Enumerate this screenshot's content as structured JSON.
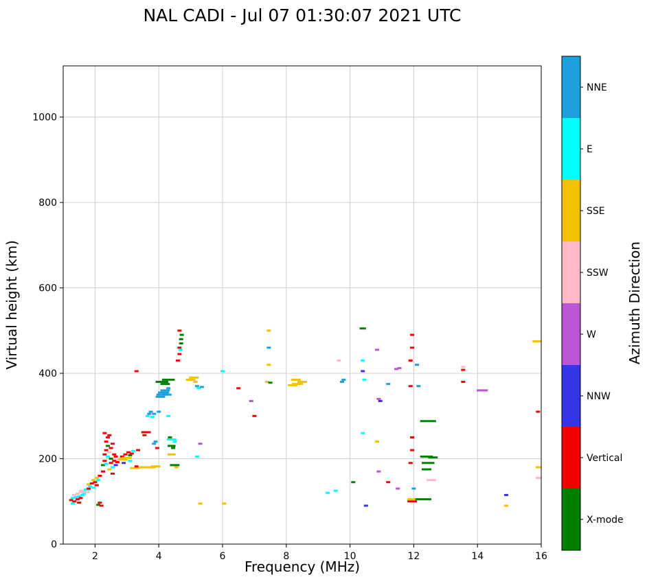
{
  "chart_data": {
    "type": "scatter",
    "title": "NAL CADI - Jul 07 01:30:07 2021 UTC",
    "xlabel": "Frequency (MHz)",
    "ylabel": "Virtual height (km)",
    "xlim": [
      1,
      16
    ],
    "ylim": [
      0,
      1120
    ],
    "xticks": [
      2,
      4,
      6,
      8,
      10,
      12,
      14,
      16
    ],
    "yticks": [
      0,
      200,
      400,
      600,
      800,
      1000
    ],
    "grid": true,
    "grid_color": "#cfcfcf",
    "marker": "horizontal-dash",
    "colorbar": {
      "label": "Azimuth Direction",
      "categories": [
        {
          "name": "NNE",
          "color": "#1e9fdf"
        },
        {
          "name": "E",
          "color": "#00ffff"
        },
        {
          "name": "SSE",
          "color": "#f2c200"
        },
        {
          "name": "SSW",
          "color": "#ffb9c6"
        },
        {
          "name": "W",
          "color": "#ba55d3"
        },
        {
          "name": "NNW",
          "color": "#3434e8"
        },
        {
          "name": "Vertical",
          "color": "#f40000"
        },
        {
          "name": "X-mode",
          "color": "#008000"
        }
      ]
    },
    "points_format": "[frequency_MHz, virtual_height_km, azimuth, optional_width_MHz]",
    "points": [
      [
        1.25,
        103,
        "Vertical"
      ],
      [
        1.3,
        95,
        "E"
      ],
      [
        1.3,
        108,
        "E"
      ],
      [
        1.35,
        100,
        "Vertical"
      ],
      [
        1.35,
        115,
        "SSW"
      ],
      [
        1.4,
        110,
        "E"
      ],
      [
        1.45,
        105,
        "Vertical"
      ],
      [
        1.45,
        118,
        "SSW"
      ],
      [
        1.5,
        97,
        "Vertical"
      ],
      [
        1.5,
        112,
        "E"
      ],
      [
        1.55,
        108,
        "Vertical"
      ],
      [
        1.55,
        122,
        "SSW"
      ],
      [
        1.6,
        115,
        "E"
      ],
      [
        1.6,
        125,
        "SSW",
        0.2
      ],
      [
        1.65,
        118,
        "E"
      ],
      [
        1.7,
        122,
        "SSW",
        0.25
      ],
      [
        1.75,
        128,
        "E",
        0.2
      ],
      [
        1.8,
        130,
        "Vertical"
      ],
      [
        1.8,
        140,
        "SSE"
      ],
      [
        1.85,
        135,
        "E"
      ],
      [
        1.9,
        142,
        "Vertical"
      ],
      [
        1.95,
        132,
        "E"
      ],
      [
        1.95,
        150,
        "SSE"
      ],
      [
        2.0,
        145,
        "Vertical"
      ],
      [
        2.05,
        138,
        "Vertical"
      ],
      [
        2.05,
        155,
        "SSE"
      ],
      [
        2.1,
        92,
        "X-mode"
      ],
      [
        2.1,
        150,
        "E"
      ],
      [
        2.15,
        97,
        "Vertical"
      ],
      [
        2.15,
        160,
        "Vertical"
      ],
      [
        2.2,
        90,
        "Vertical"
      ],
      [
        2.25,
        170,
        "Vertical"
      ],
      [
        2.25,
        185,
        "X-mode"
      ],
      [
        2.3,
        195,
        "Vertical"
      ],
      [
        2.3,
        210,
        "Vertical"
      ],
      [
        2.3,
        260,
        "Vertical"
      ],
      [
        2.35,
        188,
        "E"
      ],
      [
        2.35,
        220,
        "Vertical"
      ],
      [
        2.35,
        240,
        "Vertical"
      ],
      [
        2.4,
        205,
        "E"
      ],
      [
        2.4,
        230,
        "X-mode"
      ],
      [
        2.4,
        250,
        "Vertical"
      ],
      [
        2.45,
        175,
        "SSE"
      ],
      [
        2.45,
        215,
        "SSW"
      ],
      [
        2.45,
        255,
        "Vertical"
      ],
      [
        2.5,
        190,
        "Vertical"
      ],
      [
        2.5,
        200,
        "X-mode"
      ],
      [
        2.5,
        225,
        "Vertical"
      ],
      [
        2.55,
        165,
        "Vertical"
      ],
      [
        2.55,
        180,
        "E"
      ],
      [
        2.55,
        235,
        "Vertical"
      ],
      [
        2.6,
        195,
        "Vertical"
      ],
      [
        2.6,
        210,
        "Vertical"
      ],
      [
        2.65,
        185,
        "NNW"
      ],
      [
        2.65,
        205,
        "Vertical"
      ],
      [
        2.7,
        192,
        "Vertical"
      ],
      [
        2.75,
        198,
        "SSW"
      ],
      [
        2.8,
        200,
        "SSE"
      ],
      [
        2.85,
        205,
        "Vertical"
      ],
      [
        2.9,
        190,
        "NNW"
      ],
      [
        2.9,
        198,
        "SSE",
        0.25
      ],
      [
        2.95,
        210,
        "Vertical"
      ],
      [
        3.0,
        202,
        "SSE",
        0.3
      ],
      [
        3.05,
        215,
        "Vertical"
      ],
      [
        3.1,
        195,
        "E"
      ],
      [
        3.1,
        208,
        "X-mode"
      ],
      [
        3.15,
        212,
        "Vertical"
      ],
      [
        3.2,
        218,
        "E"
      ],
      [
        3.25,
        178,
        "SSE",
        0.3
      ],
      [
        3.3,
        182,
        "Vertical"
      ],
      [
        3.3,
        405,
        "Vertical"
      ],
      [
        3.35,
        220,
        "Vertical"
      ],
      [
        3.55,
        255,
        "Vertical"
      ],
      [
        3.6,
        262,
        "Vertical",
        0.3
      ],
      [
        3.65,
        180,
        "SSE",
        0.5
      ],
      [
        3.65,
        300,
        "E"
      ],
      [
        3.7,
        305,
        "NNE"
      ],
      [
        3.75,
        310,
        "NNE"
      ],
      [
        3.8,
        298,
        "E"
      ],
      [
        3.85,
        235,
        "NNE"
      ],
      [
        3.85,
        305,
        "NNE"
      ],
      [
        3.9,
        182,
        "SSE",
        0.3
      ],
      [
        3.9,
        240,
        "NNE"
      ],
      [
        3.95,
        225,
        "Vertical"
      ],
      [
        4.0,
        310,
        "NNE"
      ],
      [
        4.05,
        345,
        "NNE",
        0.3
      ],
      [
        4.1,
        350,
        "NNE",
        0.35
      ],
      [
        4.1,
        380,
        "X-mode",
        0.4
      ],
      [
        4.15,
        355,
        "NNE",
        0.35
      ],
      [
        4.2,
        360,
        "NNE",
        0.3
      ],
      [
        4.2,
        375,
        "X-mode",
        0.3
      ],
      [
        4.25,
        350,
        "NNE",
        0.3
      ],
      [
        4.3,
        300,
        "E"
      ],
      [
        4.3,
        365,
        "NNE"
      ],
      [
        4.3,
        385,
        "X-mode",
        0.4
      ],
      [
        4.35,
        250,
        "X-mode"
      ],
      [
        4.4,
        210,
        "SSE",
        0.25
      ],
      [
        4.4,
        230,
        "X-mode",
        0.25
      ],
      [
        4.4,
        245,
        "E",
        0.3
      ],
      [
        4.45,
        225,
        "X-mode"
      ],
      [
        4.5,
        185,
        "X-mode",
        0.3
      ],
      [
        4.5,
        240,
        "E"
      ],
      [
        4.55,
        180,
        "SSE"
      ],
      [
        4.6,
        430,
        "Vertical"
      ],
      [
        4.65,
        445,
        "Vertical"
      ],
      [
        4.65,
        460,
        "Vertical"
      ],
      [
        4.65,
        500,
        "Vertical"
      ],
      [
        4.68,
        455,
        "E"
      ],
      [
        4.7,
        470,
        "X-mode"
      ],
      [
        4.7,
        480,
        "X-mode"
      ],
      [
        4.72,
        490,
        "X-mode"
      ],
      [
        5.0,
        385,
        "SSE",
        0.3
      ],
      [
        5.1,
        390,
        "SSE",
        0.3
      ],
      [
        5.15,
        380,
        "SSE"
      ],
      [
        5.2,
        205,
        "E"
      ],
      [
        5.2,
        370,
        "NNE"
      ],
      [
        5.25,
        365,
        "E"
      ],
      [
        5.3,
        95,
        "SSE"
      ],
      [
        5.3,
        235,
        "W"
      ],
      [
        5.35,
        368,
        "NNE"
      ],
      [
        6.0,
        405,
        "E"
      ],
      [
        6.05,
        95,
        "SSE"
      ],
      [
        6.5,
        365,
        "Vertical"
      ],
      [
        6.9,
        335,
        "W"
      ],
      [
        7.0,
        300,
        "Vertical"
      ],
      [
        7.4,
        380,
        "SSE"
      ],
      [
        7.45,
        420,
        "SSE"
      ],
      [
        7.45,
        460,
        "NNE"
      ],
      [
        7.45,
        500,
        "SSE"
      ],
      [
        7.5,
        378,
        "X-mode"
      ],
      [
        8.2,
        372,
        "SSE",
        0.3
      ],
      [
        8.3,
        385,
        "SSE",
        0.3
      ],
      [
        8.35,
        375,
        "SSE",
        0.35
      ],
      [
        8.5,
        380,
        "SSE",
        0.3
      ],
      [
        9.3,
        120,
        "E"
      ],
      [
        9.55,
        125,
        "E"
      ],
      [
        9.65,
        430,
        "SSW"
      ],
      [
        9.75,
        380,
        "NNE"
      ],
      [
        9.8,
        385,
        "NNE"
      ],
      [
        10.1,
        145,
        "X-mode"
      ],
      [
        10.4,
        260,
        "E"
      ],
      [
        10.4,
        405,
        "NNW"
      ],
      [
        10.4,
        430,
        "E"
      ],
      [
        10.4,
        505,
        "X-mode",
        0.2
      ],
      [
        10.45,
        385,
        "E"
      ],
      [
        10.5,
        90,
        "NNW"
      ],
      [
        10.85,
        240,
        "SSE"
      ],
      [
        10.85,
        455,
        "W"
      ],
      [
        10.9,
        170,
        "W"
      ],
      [
        10.9,
        340,
        "W"
      ],
      [
        10.95,
        335,
        "NNW"
      ],
      [
        11.2,
        145,
        "Vertical"
      ],
      [
        11.2,
        375,
        "NNE"
      ],
      [
        11.45,
        410,
        "W"
      ],
      [
        11.5,
        130,
        "W"
      ],
      [
        11.55,
        412,
        "W"
      ],
      [
        11.9,
        190,
        "Vertical"
      ],
      [
        11.9,
        370,
        "Vertical"
      ],
      [
        11.9,
        430,
        "Vertical"
      ],
      [
        11.95,
        100,
        "Vertical",
        0.3
      ],
      [
        11.95,
        105,
        "SSE",
        0.3
      ],
      [
        11.95,
        220,
        "Vertical"
      ],
      [
        11.95,
        250,
        "Vertical"
      ],
      [
        11.95,
        460,
        "Vertical"
      ],
      [
        11.95,
        490,
        "Vertical"
      ],
      [
        12.0,
        130,
        "NNE"
      ],
      [
        12.1,
        420,
        "NNE"
      ],
      [
        12.15,
        370,
        "NNE"
      ],
      [
        12.3,
        105,
        "X-mode",
        0.5
      ],
      [
        12.4,
        175,
        "X-mode",
        0.3
      ],
      [
        12.4,
        205,
        "X-mode",
        0.4
      ],
      [
        12.45,
        190,
        "X-mode",
        0.4
      ],
      [
        12.45,
        288,
        "X-mode",
        0.5
      ],
      [
        12.55,
        150,
        "SSW",
        0.3
      ],
      [
        12.6,
        203,
        "X-mode",
        0.3
      ],
      [
        13.55,
        380,
        "Vertical"
      ],
      [
        13.55,
        408,
        "Vertical"
      ],
      [
        13.55,
        415,
        "SSW"
      ],
      [
        14.15,
        360,
        "W",
        0.35
      ],
      [
        14.9,
        90,
        "SSE"
      ],
      [
        14.9,
        115,
        "NNW"
      ],
      [
        15.9,
        310,
        "Vertical"
      ],
      [
        15.9,
        475,
        "SSE",
        0.35
      ],
      [
        15.95,
        155,
        "SSW",
        0.25
      ],
      [
        15.95,
        180,
        "SSE",
        0.25
      ]
    ]
  }
}
